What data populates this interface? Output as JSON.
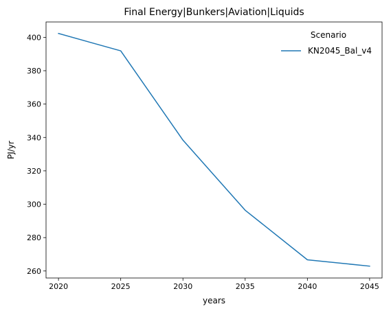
{
  "chart_data": {
    "type": "line",
    "title": "Final Energy|Bunkers|Aviation|Liquids",
    "xlabel": "years",
    "ylabel": "PJ/yr",
    "x": [
      2020,
      2025,
      2030,
      2035,
      2040,
      2045
    ],
    "xticks": [
      2020,
      2025,
      2030,
      2035,
      2040,
      2045
    ],
    "yticks": [
      260,
      280,
      300,
      320,
      340,
      360,
      380,
      400
    ],
    "xlim": [
      2019,
      2046
    ],
    "ylim": [
      255.8,
      409.2
    ],
    "grid": false,
    "legend": {
      "title": "Scenario",
      "placement": "top-right"
    },
    "series": [
      {
        "name": "KN2045_Bal_v4",
        "color": "#1f77b4",
        "values": [
          402.3,
          391.9,
          338.4,
          296.4,
          266.7,
          262.9
        ]
      }
    ]
  }
}
